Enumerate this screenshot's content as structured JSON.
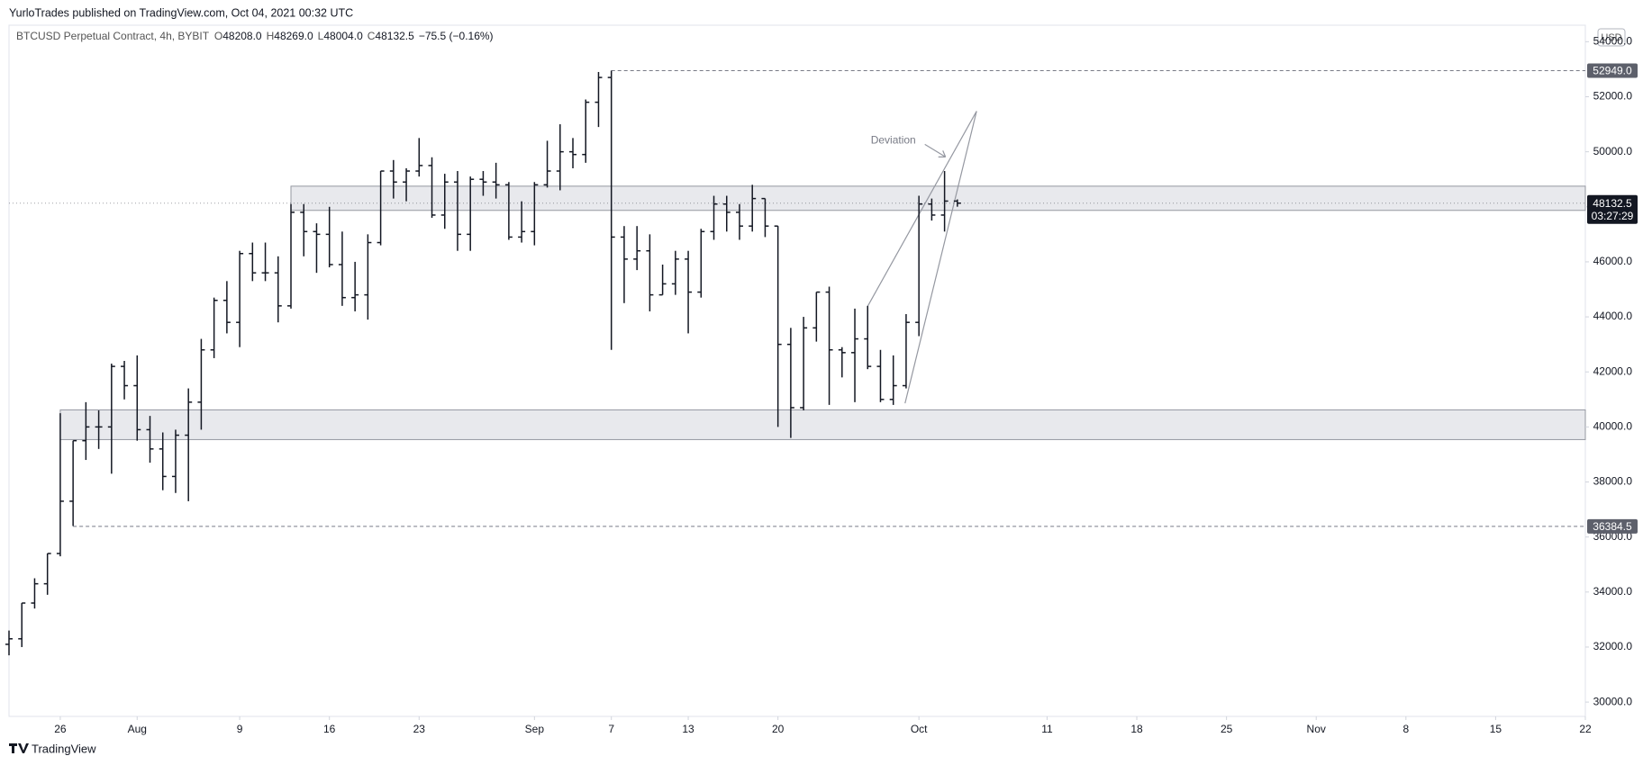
{
  "header": {
    "text": "YurloTrades published on TradingView.com, Oct 04, 2021 00:32 UTC"
  },
  "legend": {
    "symbol": "BTCUSD Perpetual Contract, 4h, BYBIT",
    "ohlc": [
      {
        "label": "O",
        "value": "48208.0"
      },
      {
        "label": "H",
        "value": "48269.0"
      },
      {
        "label": "L",
        "value": "48004.0"
      },
      {
        "label": "C",
        "value": "48132.5"
      }
    ],
    "change": "−75.5 (−0.16%)"
  },
  "toolbar": {
    "currency": "USD"
  },
  "footer": {
    "brand": "TradingView"
  },
  "chart_data": {
    "type": "ohlc",
    "color": "#131722",
    "grid": false,
    "xlim": [
      "2021-07-22",
      "2021-11-22"
    ],
    "ylim": [
      29480,
      54600
    ],
    "yticks": [
      {
        "value": 30000,
        "label": "30000.0"
      },
      {
        "value": 32000,
        "label": "32000.0"
      },
      {
        "value": 34000,
        "label": "34000.0"
      },
      {
        "value": 36000,
        "label": "36000.0"
      },
      {
        "value": 38000,
        "label": "38000.0"
      },
      {
        "value": 40000,
        "label": "40000.0"
      },
      {
        "value": 42000,
        "label": "42000.0"
      },
      {
        "value": 44000,
        "label": "44000.0"
      },
      {
        "value": 46000,
        "label": "46000.0"
      },
      {
        "value": 48000,
        "label": "48000.0"
      },
      {
        "value": 50000,
        "label": "50000.0"
      },
      {
        "value": 52000,
        "label": "52000.0"
      },
      {
        "value": 54000,
        "label": "54000.0"
      }
    ],
    "xticks": [
      {
        "value": "2021-07-26",
        "label": "26"
      },
      {
        "value": "2021-08-01",
        "label": "Aug"
      },
      {
        "value": "2021-08-09",
        "label": "9"
      },
      {
        "value": "2021-08-16",
        "label": "16"
      },
      {
        "value": "2021-08-23",
        "label": "23"
      },
      {
        "value": "2021-09-01",
        "label": "Sep"
      },
      {
        "value": "2021-09-07",
        "label": "7"
      },
      {
        "value": "2021-09-13",
        "label": "13"
      },
      {
        "value": "2021-09-20",
        "label": "20"
      },
      {
        "value": "2021-10-01",
        "label": "Oct"
      },
      {
        "value": "2021-10-11",
        "label": "11"
      },
      {
        "value": "2021-10-18",
        "label": "18"
      },
      {
        "value": "2021-10-25",
        "label": "25"
      },
      {
        "value": "2021-11-01",
        "label": "Nov"
      },
      {
        "value": "2021-11-08",
        "label": "8"
      },
      {
        "value": "2021-11-15",
        "label": "15"
      },
      {
        "value": "2021-11-22",
        "label": "22"
      }
    ],
    "x": [
      "2021-07-22",
      "2021-07-23",
      "2021-07-24",
      "2021-07-25",
      "2021-07-26",
      "2021-07-27",
      "2021-07-28",
      "2021-07-29",
      "2021-07-30",
      "2021-07-31",
      "2021-08-01",
      "2021-08-02",
      "2021-08-03",
      "2021-08-04",
      "2021-08-05",
      "2021-08-06",
      "2021-08-07",
      "2021-08-08",
      "2021-08-09",
      "2021-08-10",
      "2021-08-11",
      "2021-08-12",
      "2021-08-13",
      "2021-08-14",
      "2021-08-15",
      "2021-08-16",
      "2021-08-17",
      "2021-08-18",
      "2021-08-19",
      "2021-08-20",
      "2021-08-21",
      "2021-08-22",
      "2021-08-23",
      "2021-08-24",
      "2021-08-25",
      "2021-08-26",
      "2021-08-27",
      "2021-08-28",
      "2021-08-29",
      "2021-08-30",
      "2021-08-31",
      "2021-09-01",
      "2021-09-02",
      "2021-09-03",
      "2021-09-04",
      "2021-09-05",
      "2021-09-06",
      "2021-09-07",
      "2021-09-08",
      "2021-09-09",
      "2021-09-10",
      "2021-09-11",
      "2021-09-12",
      "2021-09-13",
      "2021-09-14",
      "2021-09-15",
      "2021-09-16",
      "2021-09-17",
      "2021-09-18",
      "2021-09-19",
      "2021-09-20",
      "2021-09-21",
      "2021-09-22",
      "2021-09-23",
      "2021-09-24",
      "2021-09-25",
      "2021-09-26",
      "2021-09-27",
      "2021-09-28",
      "2021-09-29",
      "2021-09-30",
      "2021-10-01",
      "2021-10-02",
      "2021-10-03",
      "2021-10-04"
    ],
    "open": [
      32100,
      32300,
      33600,
      34300,
      35400,
      37300,
      39500,
      40000,
      40000,
      42200,
      41500,
      39900,
      39200,
      38200,
      39700,
      40900,
      42800,
      44600,
      43800,
      46300,
      45600,
      45600,
      44400,
      47800,
      47100,
      47000,
      45900,
      44700,
      44800,
      46700,
      49300,
      48900,
      49300,
      49500,
      47700,
      48900,
      47000,
      49000,
      48900,
      48800,
      46900,
      47100,
      48800,
      49300,
      50000,
      49900,
      51800,
      52700,
      46900,
      46100,
      46400,
      44800,
      45200,
      46100,
      44900,
      47100,
      48100,
      47800,
      47300,
      48300,
      47300,
      43000,
      40700,
      43600,
      44900,
      42800,
      42700,
      43200,
      42200,
      41000,
      41500,
      43800,
      48100,
      47700,
      48208
    ],
    "high": [
      32600,
      33600,
      34500,
      35400,
      40500,
      39500,
      40900,
      40600,
      42300,
      42400,
      42600,
      40400,
      39800,
      39900,
      41400,
      43200,
      44700,
      45300,
      46400,
      46700,
      46700,
      46200,
      48100,
      48100,
      47400,
      48000,
      47100,
      46000,
      47000,
      49300,
      49700,
      49400,
      50500,
      49800,
      49200,
      49300,
      49100,
      49300,
      49600,
      48900,
      48200,
      48900,
      50400,
      51000,
      50500,
      51900,
      52900,
      52949,
      47300,
      47300,
      47000,
      45900,
      46400,
      46400,
      47200,
      48400,
      48400,
      48100,
      48800,
      48300,
      47300,
      43600,
      44000,
      44900,
      45100,
      42900,
      44300,
      44400,
      42800,
      42600,
      44100,
      48400,
      48300,
      49300,
      48269
    ],
    "low": [
      31700,
      32000,
      33400,
      33900,
      35300,
      36400,
      38800,
      39200,
      38300,
      41000,
      39500,
      38700,
      37700,
      37600,
      37300,
      39900,
      42500,
      43400,
      42900,
      45300,
      45300,
      43800,
      44300,
      46200,
      45600,
      45800,
      44400,
      44200,
      43900,
      46600,
      48300,
      48200,
      49100,
      47600,
      47200,
      46400,
      46400,
      48400,
      48300,
      46800,
      46700,
      46600,
      48700,
      48600,
      49400,
      49600,
      50900,
      42800,
      44500,
      45700,
      44200,
      44800,
      44800,
      43400,
      44700,
      46800,
      47100,
      46800,
      47100,
      46900,
      40000,
      39600,
      40600,
      43100,
      40800,
      41800,
      40900,
      42100,
      40900,
      40800,
      41400,
      43300,
      47500,
      47100,
      48004
    ],
    "close": [
      32300,
      33600,
      34300,
      35400,
      37300,
      39500,
      40000,
      40000,
      42200,
      41500,
      39900,
      39200,
      38200,
      39700,
      40900,
      42800,
      44600,
      43800,
      46300,
      45600,
      45600,
      44400,
      47800,
      47100,
      47000,
      45900,
      44700,
      44800,
      46700,
      49300,
      48900,
      49300,
      49500,
      47700,
      48900,
      47000,
      49000,
      48900,
      48800,
      46900,
      47100,
      48800,
      49300,
      50000,
      49900,
      51800,
      52700,
      46900,
      46100,
      46400,
      44800,
      45200,
      46100,
      44900,
      47100,
      48100,
      47800,
      47300,
      48300,
      47300,
      43000,
      40700,
      43600,
      44900,
      42800,
      42700,
      43200,
      42200,
      41000,
      41500,
      43800,
      48100,
      47700,
      48208,
      48132.5
    ],
    "zones": [
      {
        "start": "2021-08-13",
        "top": 48750,
        "bottom": 47870
      },
      {
        "start": "2021-07-26",
        "top": 40620,
        "bottom": 39540
      }
    ],
    "levels": [
      {
        "start": "2021-09-07",
        "value": 52949.0,
        "label": "52949.0"
      },
      {
        "start": "2021-07-27",
        "value": 36384.5,
        "label": "36384.5"
      }
    ],
    "current": {
      "value": 48132.5,
      "label": "48132.5",
      "countdown": "03:27:29"
    },
    "trendlines": [
      {
        "x": [
          "2021-09-27",
          "2021-10-05T12:00"
        ],
        "y": [
          44384,
          51476
        ]
      },
      {
        "x": [
          "2021-09-29T22:00",
          "2021-10-05T12:00"
        ],
        "y": [
          40858,
          51476
        ]
      }
    ],
    "annotation": {
      "text": "Deviation",
      "x": "2021-09-29",
      "y": 50400
    }
  }
}
